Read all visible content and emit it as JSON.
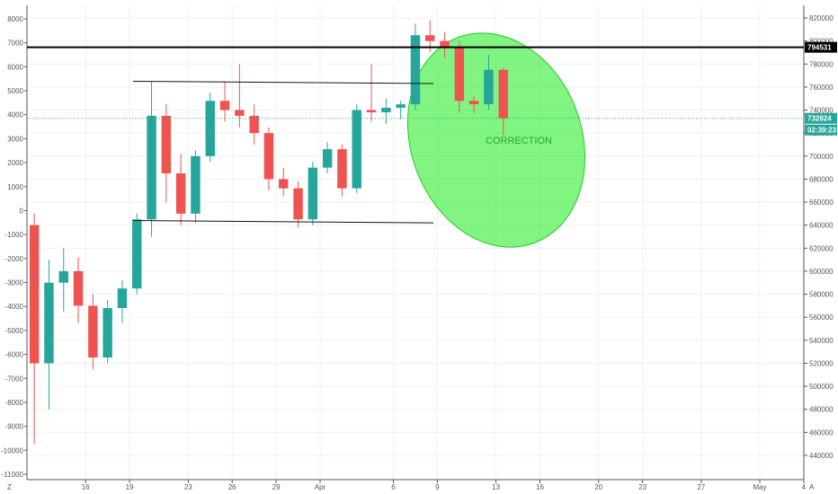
{
  "chart_data": {
    "type": "candlestick",
    "title": "",
    "xlabel": "",
    "ylabel": "",
    "x_ticks": [
      "16",
      "19",
      "23",
      "26",
      "29",
      "Apr",
      "6",
      "9",
      "13",
      "16",
      "20",
      "23",
      "27",
      "May",
      "4"
    ],
    "left_ticks": [
      "8000",
      "7000",
      "6000",
      "5000",
      "4000",
      "3000",
      "2000",
      "1000",
      "0",
      "-1000",
      "-2000",
      "-3000",
      "-4000",
      "-5000",
      "-6000",
      "-7000",
      "-8000",
      "-9000",
      "-10000",
      "-11000"
    ],
    "left_range": [
      -11000,
      8000
    ],
    "right_ticks": [
      "820000",
      "800000",
      "780000",
      "760000",
      "740000",
      "720000",
      "700000",
      "680000",
      "660000",
      "640000",
      "620000",
      "600000",
      "580000",
      "560000",
      "540000",
      "520000",
      "500000",
      "480000",
      "460000",
      "440000"
    ],
    "right_range": [
      440000,
      820000
    ],
    "corner_labels": {
      "left": "Z",
      "right": "A"
    },
    "horizontal_line": {
      "price": 794531,
      "label": "794531",
      "color": "#000000"
    },
    "current_price": {
      "price": 732824,
      "label": "732824",
      "countdown": "02:39:23",
      "color": "#26a69a"
    },
    "trend_lines": [
      {
        "name": "upper",
        "from": [
          "Mar 19",
          765000
        ],
        "to": [
          "Apr 8",
          763000
        ]
      },
      {
        "name": "lower",
        "from": [
          "Mar 19",
          644000
        ],
        "to": [
          "Apr 8",
          642000
        ]
      }
    ],
    "annotation": {
      "text": "CORRECTION",
      "shape": "ellipse",
      "color": "#33ee33"
    },
    "series": [
      {
        "date": "Mar 12",
        "open": 640000,
        "high": 650000,
        "low": 450000,
        "close": 520000
      },
      {
        "date": "Mar 13",
        "open": 520000,
        "high": 610000,
        "low": 480000,
        "close": 590000
      },
      {
        "date": "Mar 14",
        "open": 590000,
        "high": 620000,
        "low": 565000,
        "close": 600000
      },
      {
        "date": "Mar 15",
        "open": 600000,
        "high": 612000,
        "low": 555000,
        "close": 570000
      },
      {
        "date": "Mar 16",
        "open": 570000,
        "high": 580000,
        "low": 515000,
        "close": 525000
      },
      {
        "date": "Mar 17",
        "open": 525000,
        "high": 575000,
        "low": 520000,
        "close": 568000
      },
      {
        "date": "Mar 18",
        "open": 568000,
        "high": 592000,
        "low": 555000,
        "close": 585000
      },
      {
        "date": "Mar 19",
        "open": 585000,
        "high": 650000,
        "low": 580000,
        "close": 645000
      },
      {
        "date": "Mar 20",
        "open": 645000,
        "high": 765000,
        "low": 630000,
        "close": 735000
      },
      {
        "date": "Mar 21",
        "open": 735000,
        "high": 745000,
        "low": 660000,
        "close": 685000
      },
      {
        "date": "Mar 22",
        "open": 685000,
        "high": 702000,
        "low": 640000,
        "close": 650000
      },
      {
        "date": "Mar 23",
        "open": 650000,
        "high": 705000,
        "low": 642000,
        "close": 700000
      },
      {
        "date": "Mar 24",
        "open": 700000,
        "high": 755000,
        "low": 695000,
        "close": 748000
      },
      {
        "date": "Mar 25",
        "open": 748000,
        "high": 765000,
        "low": 730000,
        "close": 740000
      },
      {
        "date": "Mar 26",
        "open": 740000,
        "high": 780000,
        "low": 725000,
        "close": 735000
      },
      {
        "date": "Mar 27",
        "open": 735000,
        "high": 745000,
        "low": 710000,
        "close": 720000
      },
      {
        "date": "Mar 28",
        "open": 720000,
        "high": 725000,
        "low": 670000,
        "close": 680000
      },
      {
        "date": "Mar 29",
        "open": 680000,
        "high": 690000,
        "low": 665000,
        "close": 672000
      },
      {
        "date": "Mar 30",
        "open": 672000,
        "high": 678000,
        "low": 638000,
        "close": 645000
      },
      {
        "date": "Mar 31",
        "open": 645000,
        "high": 695000,
        "low": 640000,
        "close": 690000
      },
      {
        "date": "Apr 1",
        "open": 690000,
        "high": 712000,
        "low": 685000,
        "close": 706000
      },
      {
        "date": "Apr 2",
        "open": 706000,
        "high": 710000,
        "low": 665000,
        "close": 672000
      },
      {
        "date": "Apr 3",
        "open": 672000,
        "high": 745000,
        "low": 668000,
        "close": 740000
      },
      {
        "date": "Apr 4",
        "open": 740000,
        "high": 780000,
        "low": 730000,
        "close": 738000
      },
      {
        "date": "Apr 5",
        "open": 738000,
        "high": 750000,
        "low": 728000,
        "close": 742000
      },
      {
        "date": "Apr 6",
        "open": 742000,
        "high": 748000,
        "low": 732000,
        "close": 745000
      },
      {
        "date": "Apr 7",
        "open": 745000,
        "high": 815000,
        "low": 740000,
        "close": 805000
      },
      {
        "date": "Apr 8",
        "open": 805000,
        "high": 818000,
        "low": 790000,
        "close": 800000
      },
      {
        "date": "Apr 9",
        "open": 800000,
        "high": 808000,
        "low": 785000,
        "close": 795000
      },
      {
        "date": "Apr 10",
        "open": 795000,
        "high": 800000,
        "low": 738000,
        "close": 748000
      },
      {
        "date": "Apr 11",
        "open": 748000,
        "high": 752000,
        "low": 738000,
        "close": 745000
      },
      {
        "date": "Apr 12",
        "open": 745000,
        "high": 788000,
        "low": 740000,
        "close": 775000
      },
      {
        "date": "Apr 13",
        "open": 775000,
        "high": 777000,
        "low": 718000,
        "close": 732824
      }
    ]
  }
}
